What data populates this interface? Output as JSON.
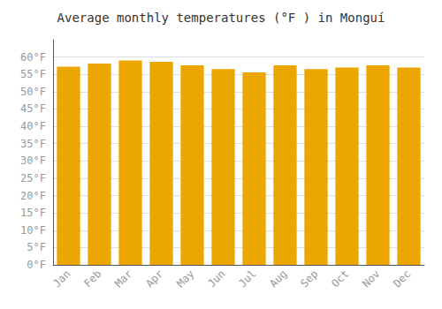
{
  "chart_data": {
    "type": "bar",
    "title": "Average monthly temperatures (°F ) in Monguí",
    "categories": [
      "Jan",
      "Feb",
      "Mar",
      "Apr",
      "May",
      "Jun",
      "Jul",
      "Aug",
      "Sep",
      "Oct",
      "Nov",
      "Dec"
    ],
    "values": [
      57.2,
      58.1,
      59.0,
      58.6,
      57.6,
      56.5,
      55.6,
      57.6,
      56.5,
      57.0,
      57.6,
      57.0
    ],
    "color": "#EBA600",
    "ylim": [
      0,
      65
    ],
    "yticks": [
      {
        "value": 0,
        "label": "0°F"
      },
      {
        "value": 5,
        "label": "5°F"
      },
      {
        "value": 10,
        "label": "10°F"
      },
      {
        "value": 15,
        "label": "15°F"
      },
      {
        "value": 20,
        "label": "20°F"
      },
      {
        "value": 25,
        "label": "25°F"
      },
      {
        "value": 30,
        "label": "30°F"
      },
      {
        "value": 35,
        "label": "35°F"
      },
      {
        "value": 40,
        "label": "40°F"
      },
      {
        "value": 45,
        "label": "45°F"
      },
      {
        "value": 50,
        "label": "50°F"
      },
      {
        "value": 55,
        "label": "55°F"
      },
      {
        "value": 60,
        "label": "60°F"
      }
    ],
    "grid": true
  }
}
